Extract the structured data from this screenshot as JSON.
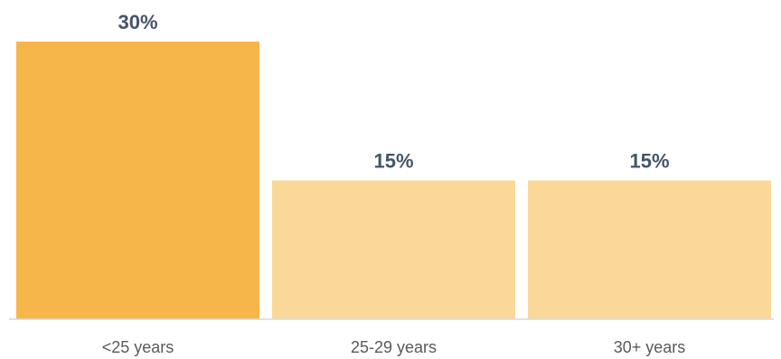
{
  "chart_data": {
    "type": "bar",
    "categories": [
      "<25 years",
      "25-29 years",
      "30+ years"
    ],
    "values": [
      30,
      15,
      15
    ],
    "data_labels": [
      "30%",
      "15%",
      "15%"
    ],
    "value_unit": "%",
    "ylim": [
      0,
      30
    ],
    "grid": false,
    "legend": "none",
    "bar_colors": [
      "#F7B64A",
      "#FAD899",
      "#FAD899"
    ],
    "label_color": "#44546A",
    "tick_color": "#595959",
    "axis_color": "#D9D9D9"
  }
}
